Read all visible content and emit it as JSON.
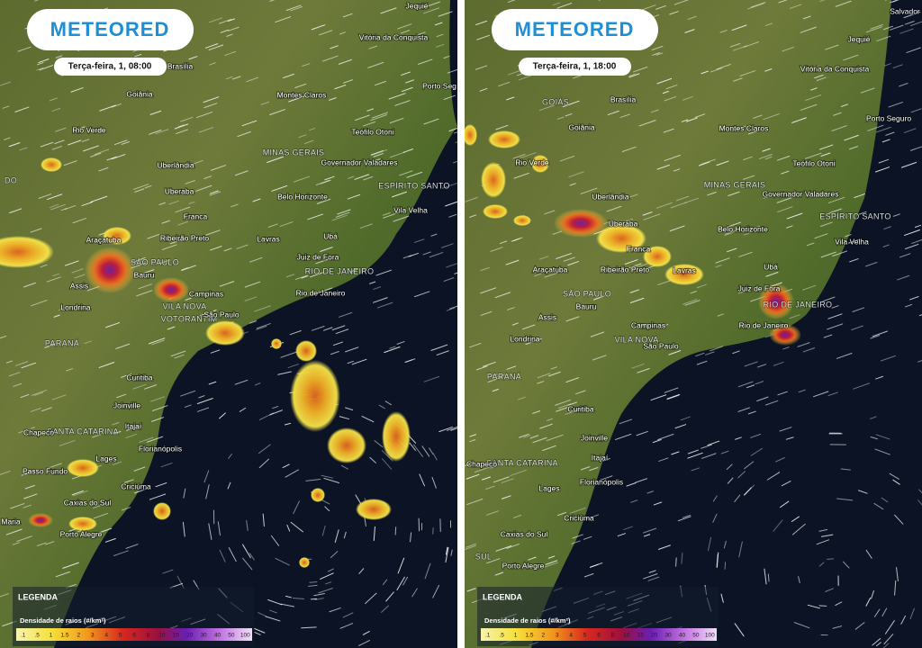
{
  "panels": [
    {
      "logo": "METEORED",
      "timestamp": "Terça-feira, 1, 08:00",
      "cities": [
        "Jequié",
        "Vitória da Conquista",
        "Brasília",
        "Porto Seg",
        "Goiânia",
        "Montes Claros",
        "Rio Verde",
        "Teófilo Otoni",
        "Governador Valadares",
        "Uberlândia",
        "Uberaba",
        "Belo Horizonte",
        "Franca",
        "Vila Velha",
        "Araçatuba",
        "Ribeirão Preto",
        "Lavras",
        "Ubá",
        "Juiz de Fora",
        "Bauru",
        "Assis",
        "Campinas",
        "Rio de Janeiro",
        "Londrina",
        "São Paulo",
        "Curitiba",
        "Joinville",
        "Itajaí",
        "Chapecó",
        "Florianópolis",
        "Lages",
        "Passo Fundo",
        "Criciúma",
        "Caxias do Sul",
        "Maria",
        "Porto Alegre"
      ],
      "regions": [
        "MINAS GERAIS",
        "DO",
        "ESPÍRITO SANTO",
        "SÃO PAULO",
        "RIO DE JANEIRO",
        "VILA NOVA",
        "VOTORANTIM",
        "PARANÁ",
        "SANTA CATARINA"
      ],
      "legend": {
        "title": "LEGENDA",
        "subtitle": "Densidade de raios (#/km²)",
        "scale": [
          ".1",
          ".5",
          "1",
          "1.5",
          "2",
          "3",
          "4",
          "5",
          "6",
          "8",
          "10",
          "15",
          "20",
          "30",
          "40",
          "50",
          "100"
        ]
      }
    },
    {
      "logo": "METEORED",
      "timestamp": "Terça-feira, 1, 18:00",
      "cities": [
        "Salvador",
        "Jequié",
        "Vitória da Conquista",
        "Brasília",
        "Porto Seguro",
        "Goiânia",
        "Montes Claros",
        "Rio Verde",
        "Teófilo Otoni",
        "Governador Valadares",
        "Uberlândia",
        "Uberaba",
        "Belo Horizonte",
        "Franca",
        "Vila Velha",
        "Ubá",
        "Araçatuba",
        "Ribeirão Preto",
        "Lavras",
        "Juiz de Fora",
        "Bauru",
        "Assis",
        "Rio de Janeiro",
        "Campinas",
        "Londrina",
        "São Paulo",
        "Curitiba",
        "Joinville",
        "Itajaí",
        "Chapecó",
        "Florianópolis",
        "Lages",
        "Criciúma",
        "Caxias do Sul",
        "Porto Alegre"
      ],
      "regions": [
        "GOIÁS",
        "MINAS GERAIS",
        "ESPÍRITO SANTO",
        "SÃO PAULO",
        "RIO DE JANEIRO",
        "VILA NOVA",
        "PARANÁ",
        "SANTA CATARINA",
        "SUL"
      ],
      "legend": {
        "title": "LEGENDA",
        "subtitle": "Densidade de raios (#/km²)",
        "scale": [
          ".1",
          ".5",
          "1",
          "1.5",
          "2",
          "3",
          "4",
          "5",
          "6",
          "8",
          "10",
          "15",
          "20",
          "30",
          "40",
          "50",
          "100"
        ]
      }
    }
  ]
}
